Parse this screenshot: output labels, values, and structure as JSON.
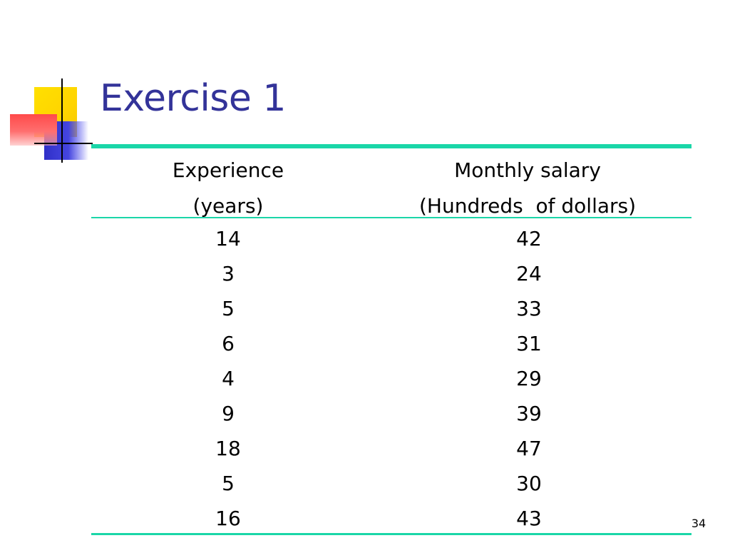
{
  "title": "Exercise 1",
  "table": {
    "columns": [
      {
        "line1": "Experience",
        "line2": "(years)"
      },
      {
        "line1": "Monthly salary",
        "line2": "(Hundreds  of dollars)"
      }
    ],
    "rows": [
      {
        "experience": "14",
        "salary": "42"
      },
      {
        "experience": "3",
        "salary": "24"
      },
      {
        "experience": "5",
        "salary": "33"
      },
      {
        "experience": "6",
        "salary": "31"
      },
      {
        "experience": "4",
        "salary": "29"
      },
      {
        "experience": "9",
        "salary": "39"
      },
      {
        "experience": "18",
        "salary": "47"
      },
      {
        "experience": "5",
        "salary": "30"
      },
      {
        "experience": "16",
        "salary": "43"
      }
    ]
  },
  "page_number": "34",
  "colors": {
    "title": "#333399",
    "rule": "#1ad6a8",
    "logo_yellow": "#ffd400",
    "logo_blue": "#3535d0",
    "logo_red": "#ff4a4a"
  }
}
